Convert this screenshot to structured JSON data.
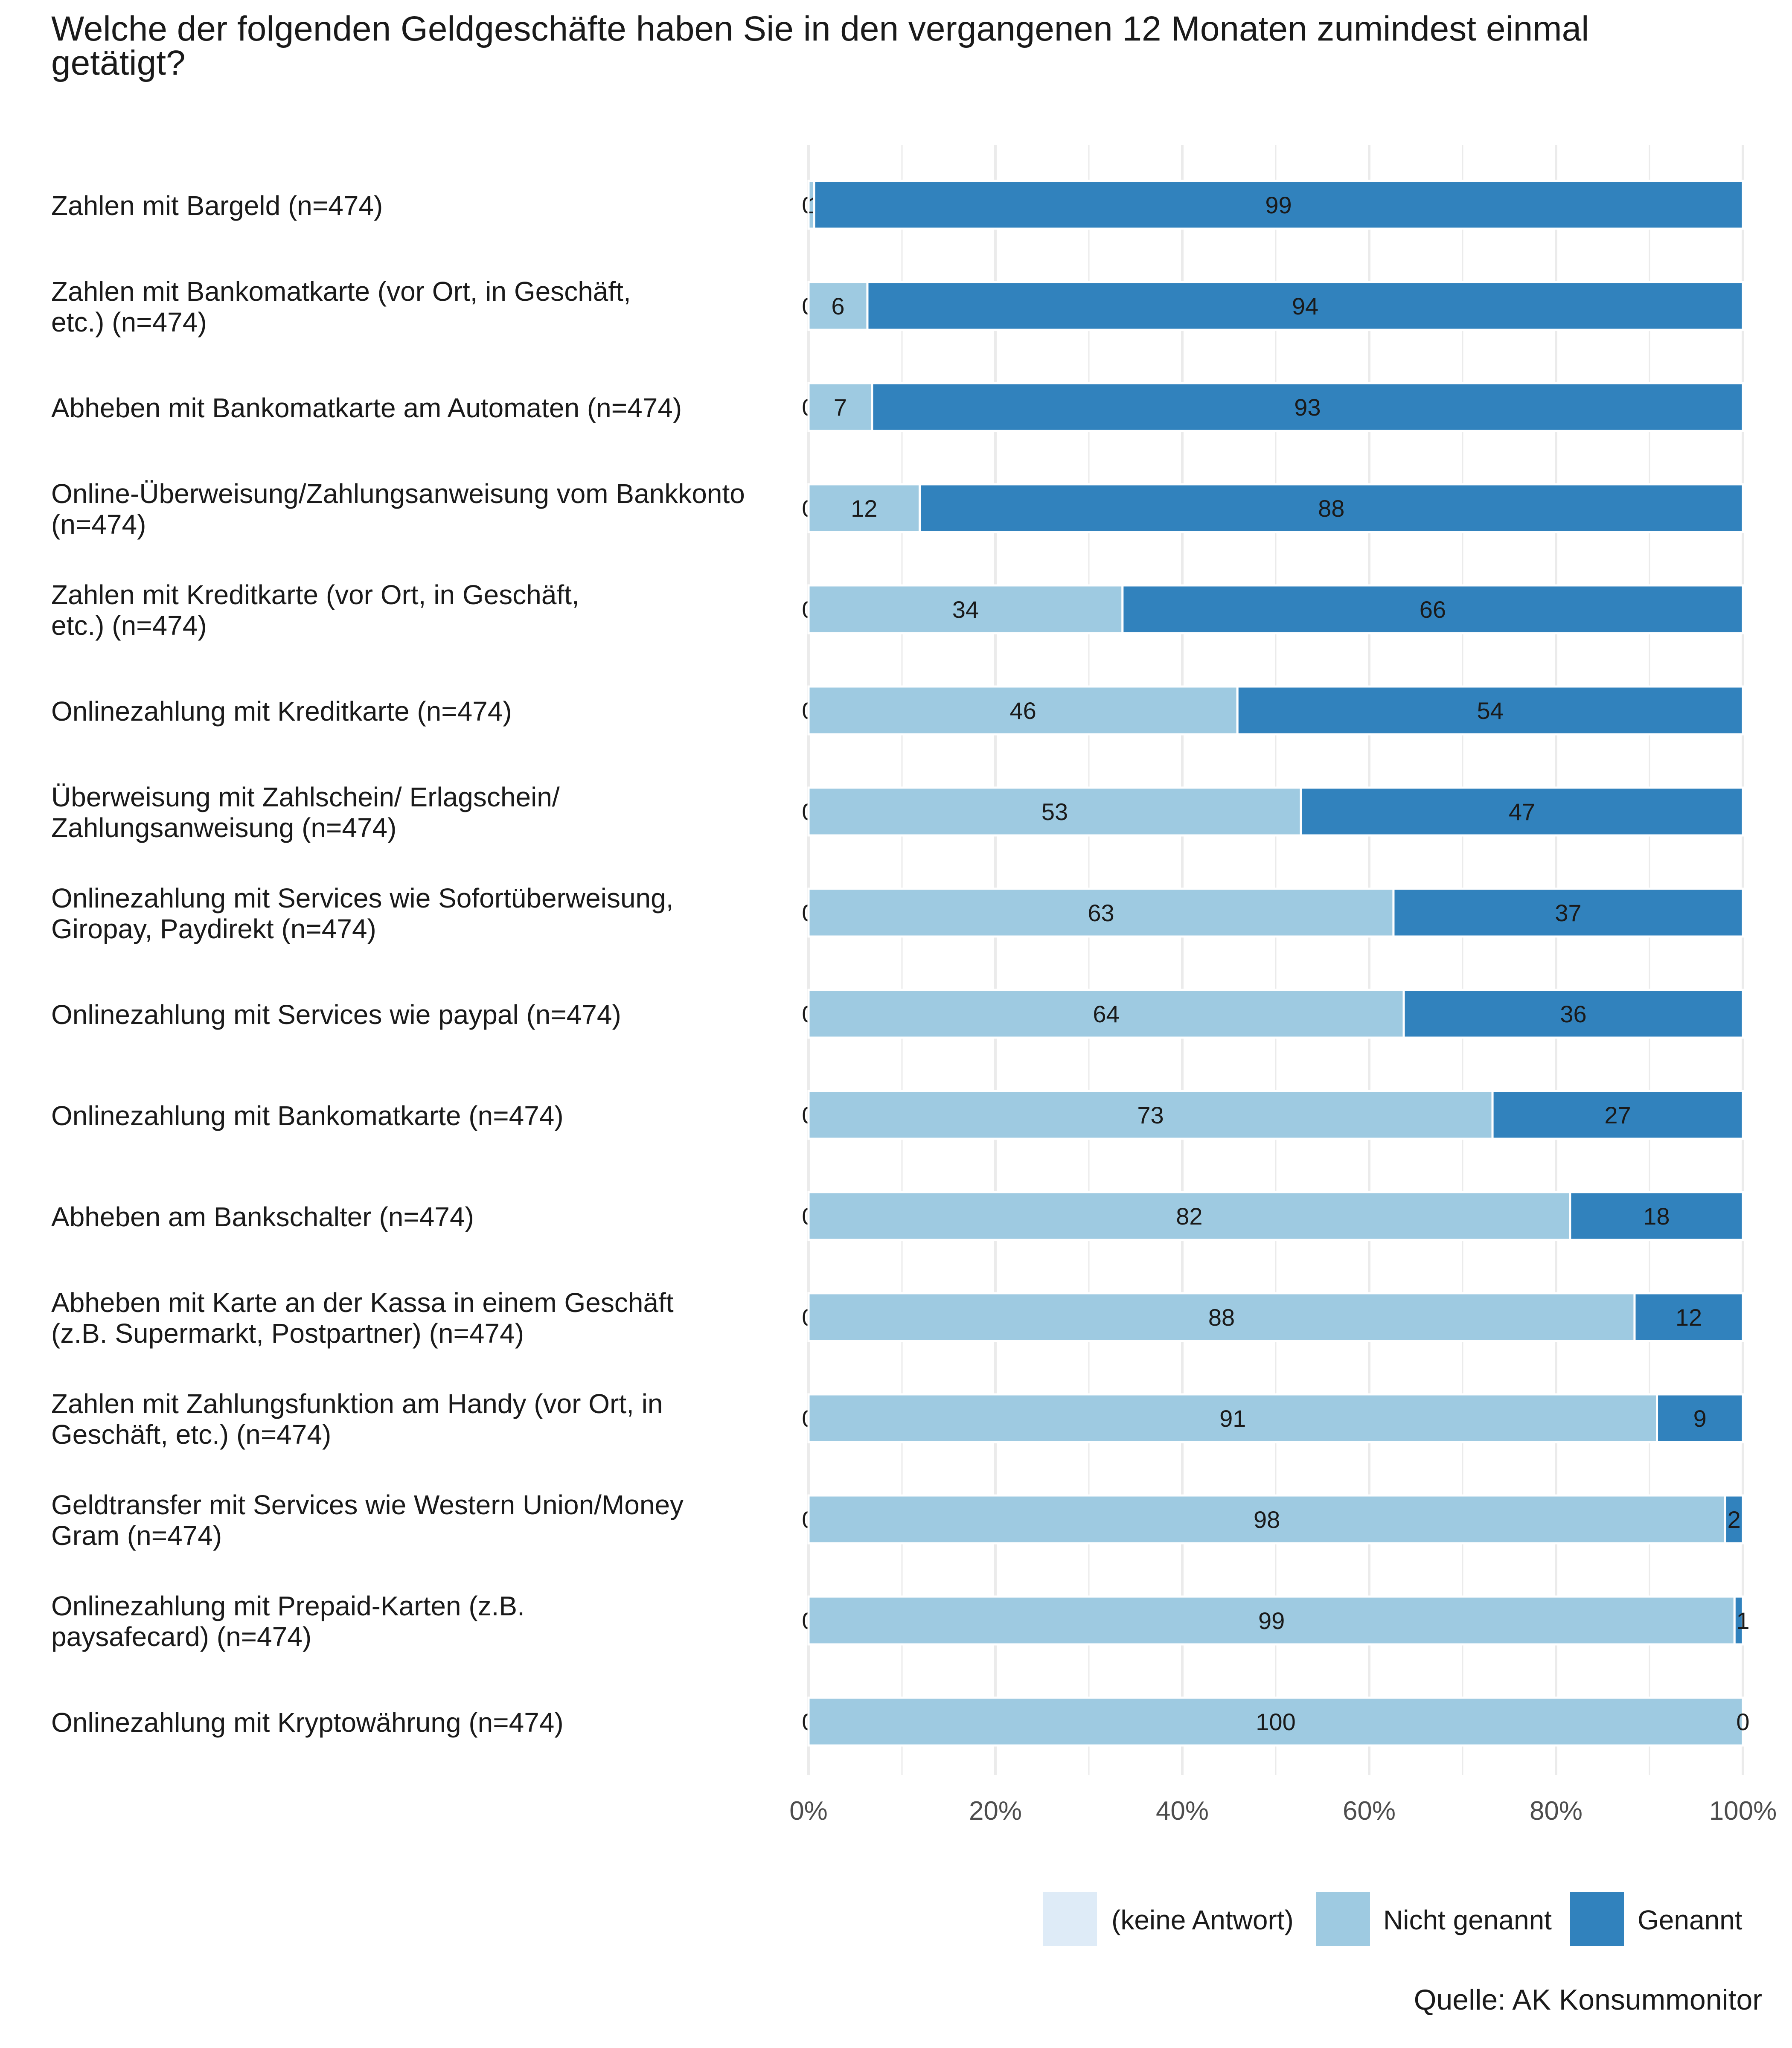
{
  "chart_data": {
    "type": "bar",
    "orientation": "horizontal",
    "stacked": true,
    "title": "Welche der folgenden Geldgeschäfte haben Sie in den vergangenen 12 Monaten zumindest einmal getätigt?",
    "title_lines": [
      "Welche der folgenden Geldgeschäfte haben Sie in den vergangenen 12 Monaten zumindest einmal",
      "getätigt?"
    ],
    "source": "Quelle: AK Konsummonitor",
    "xlim": [
      0,
      100
    ],
    "x_ticks": [
      0,
      20,
      40,
      60,
      80,
      100
    ],
    "x_tick_labels": [
      "0%",
      "20%",
      "40%",
      "60%",
      "80%",
      "100%"
    ],
    "grid": true,
    "legend_position": "bottom-right",
    "categories": [
      [
        "Zahlen mit Bargeld (n=474)"
      ],
      [
        "Zahlen mit Bankomatkarte (vor Ort, in Geschäft,",
        "etc.) (n=474)"
      ],
      [
        "Abheben mit Bankomatkarte am Automaten (n=474)"
      ],
      [
        "Online-Überweisung/Zahlungsanweisung vom Bankkonto",
        "(n=474)"
      ],
      [
        "Zahlen mit Kreditkarte (vor Ort, in Geschäft,",
        "etc.) (n=474)"
      ],
      [
        "Onlinezahlung mit Kreditkarte (n=474)"
      ],
      [
        "Überweisung mit Zahlschein/ Erlagschein/",
        "Zahlungsanweisung (n=474)"
      ],
      [
        "Onlinezahlung mit Services wie Sofortüberweisung,",
        "Giropay, Paydirekt (n=474)"
      ],
      [
        "Onlinezahlung mit Services wie paypal (n=474)"
      ],
      [
        "Onlinezahlung mit Bankomatkarte (n=474)"
      ],
      [
        "Abheben am Bankschalter (n=474)"
      ],
      [
        "Abheben mit Karte an der Kassa in einem Geschäft",
        "(z.B. Supermarkt, Postpartner) (n=474)"
      ],
      [
        "Zahlen mit Zahlungsfunktion am Handy (vor Ort, in",
        "Geschäft, etc.) (n=474)"
      ],
      [
        "Geldtransfer mit Services wie Western Union/Money",
        "Gram (n=474)"
      ],
      [
        "Onlinezahlung mit Prepaid-Karten (z.B.",
        "paysafecard) (n=474)"
      ],
      [
        "Onlinezahlung mit Kryptowährung (n=474)"
      ]
    ],
    "series": [
      {
        "name": "(keine Antwort)",
        "color": "#deebf7",
        "values": [
          0,
          0,
          0,
          0,
          0,
          0,
          0,
          0,
          0,
          0,
          0,
          0,
          0,
          0,
          0,
          0
        ],
        "labels": [
          "0",
          "0",
          "0",
          "0",
          "0",
          "0",
          "0",
          "0",
          "0",
          "0",
          "0",
          "0",
          "0",
          "0",
          "0",
          "0"
        ]
      },
      {
        "name": "Nicht genannt",
        "color": "#9ecae1",
        "values": [
          0.6,
          6.3,
          6.8,
          11.9,
          33.6,
          45.9,
          52.7,
          62.6,
          63.7,
          73.2,
          81.5,
          88.4,
          90.8,
          98.1,
          99.1,
          100
        ],
        "labels": [
          "1",
          "6",
          "7",
          "12",
          "34",
          "46",
          "53",
          "63",
          "64",
          "73",
          "82",
          "88",
          "91",
          "98",
          "99",
          "100"
        ]
      },
      {
        "name": "Genannt",
        "color": "#3182bd",
        "values": [
          99.4,
          93.7,
          93.2,
          88.1,
          66.4,
          54.1,
          47.3,
          37.4,
          36.3,
          26.8,
          18.5,
          11.6,
          9.2,
          1.9,
          0.9,
          0
        ],
        "labels": [
          "99",
          "94",
          "93",
          "88",
          "66",
          "54",
          "47",
          "37",
          "36",
          "27",
          "18",
          "12",
          "9",
          "2",
          "1",
          "0"
        ]
      }
    ]
  }
}
